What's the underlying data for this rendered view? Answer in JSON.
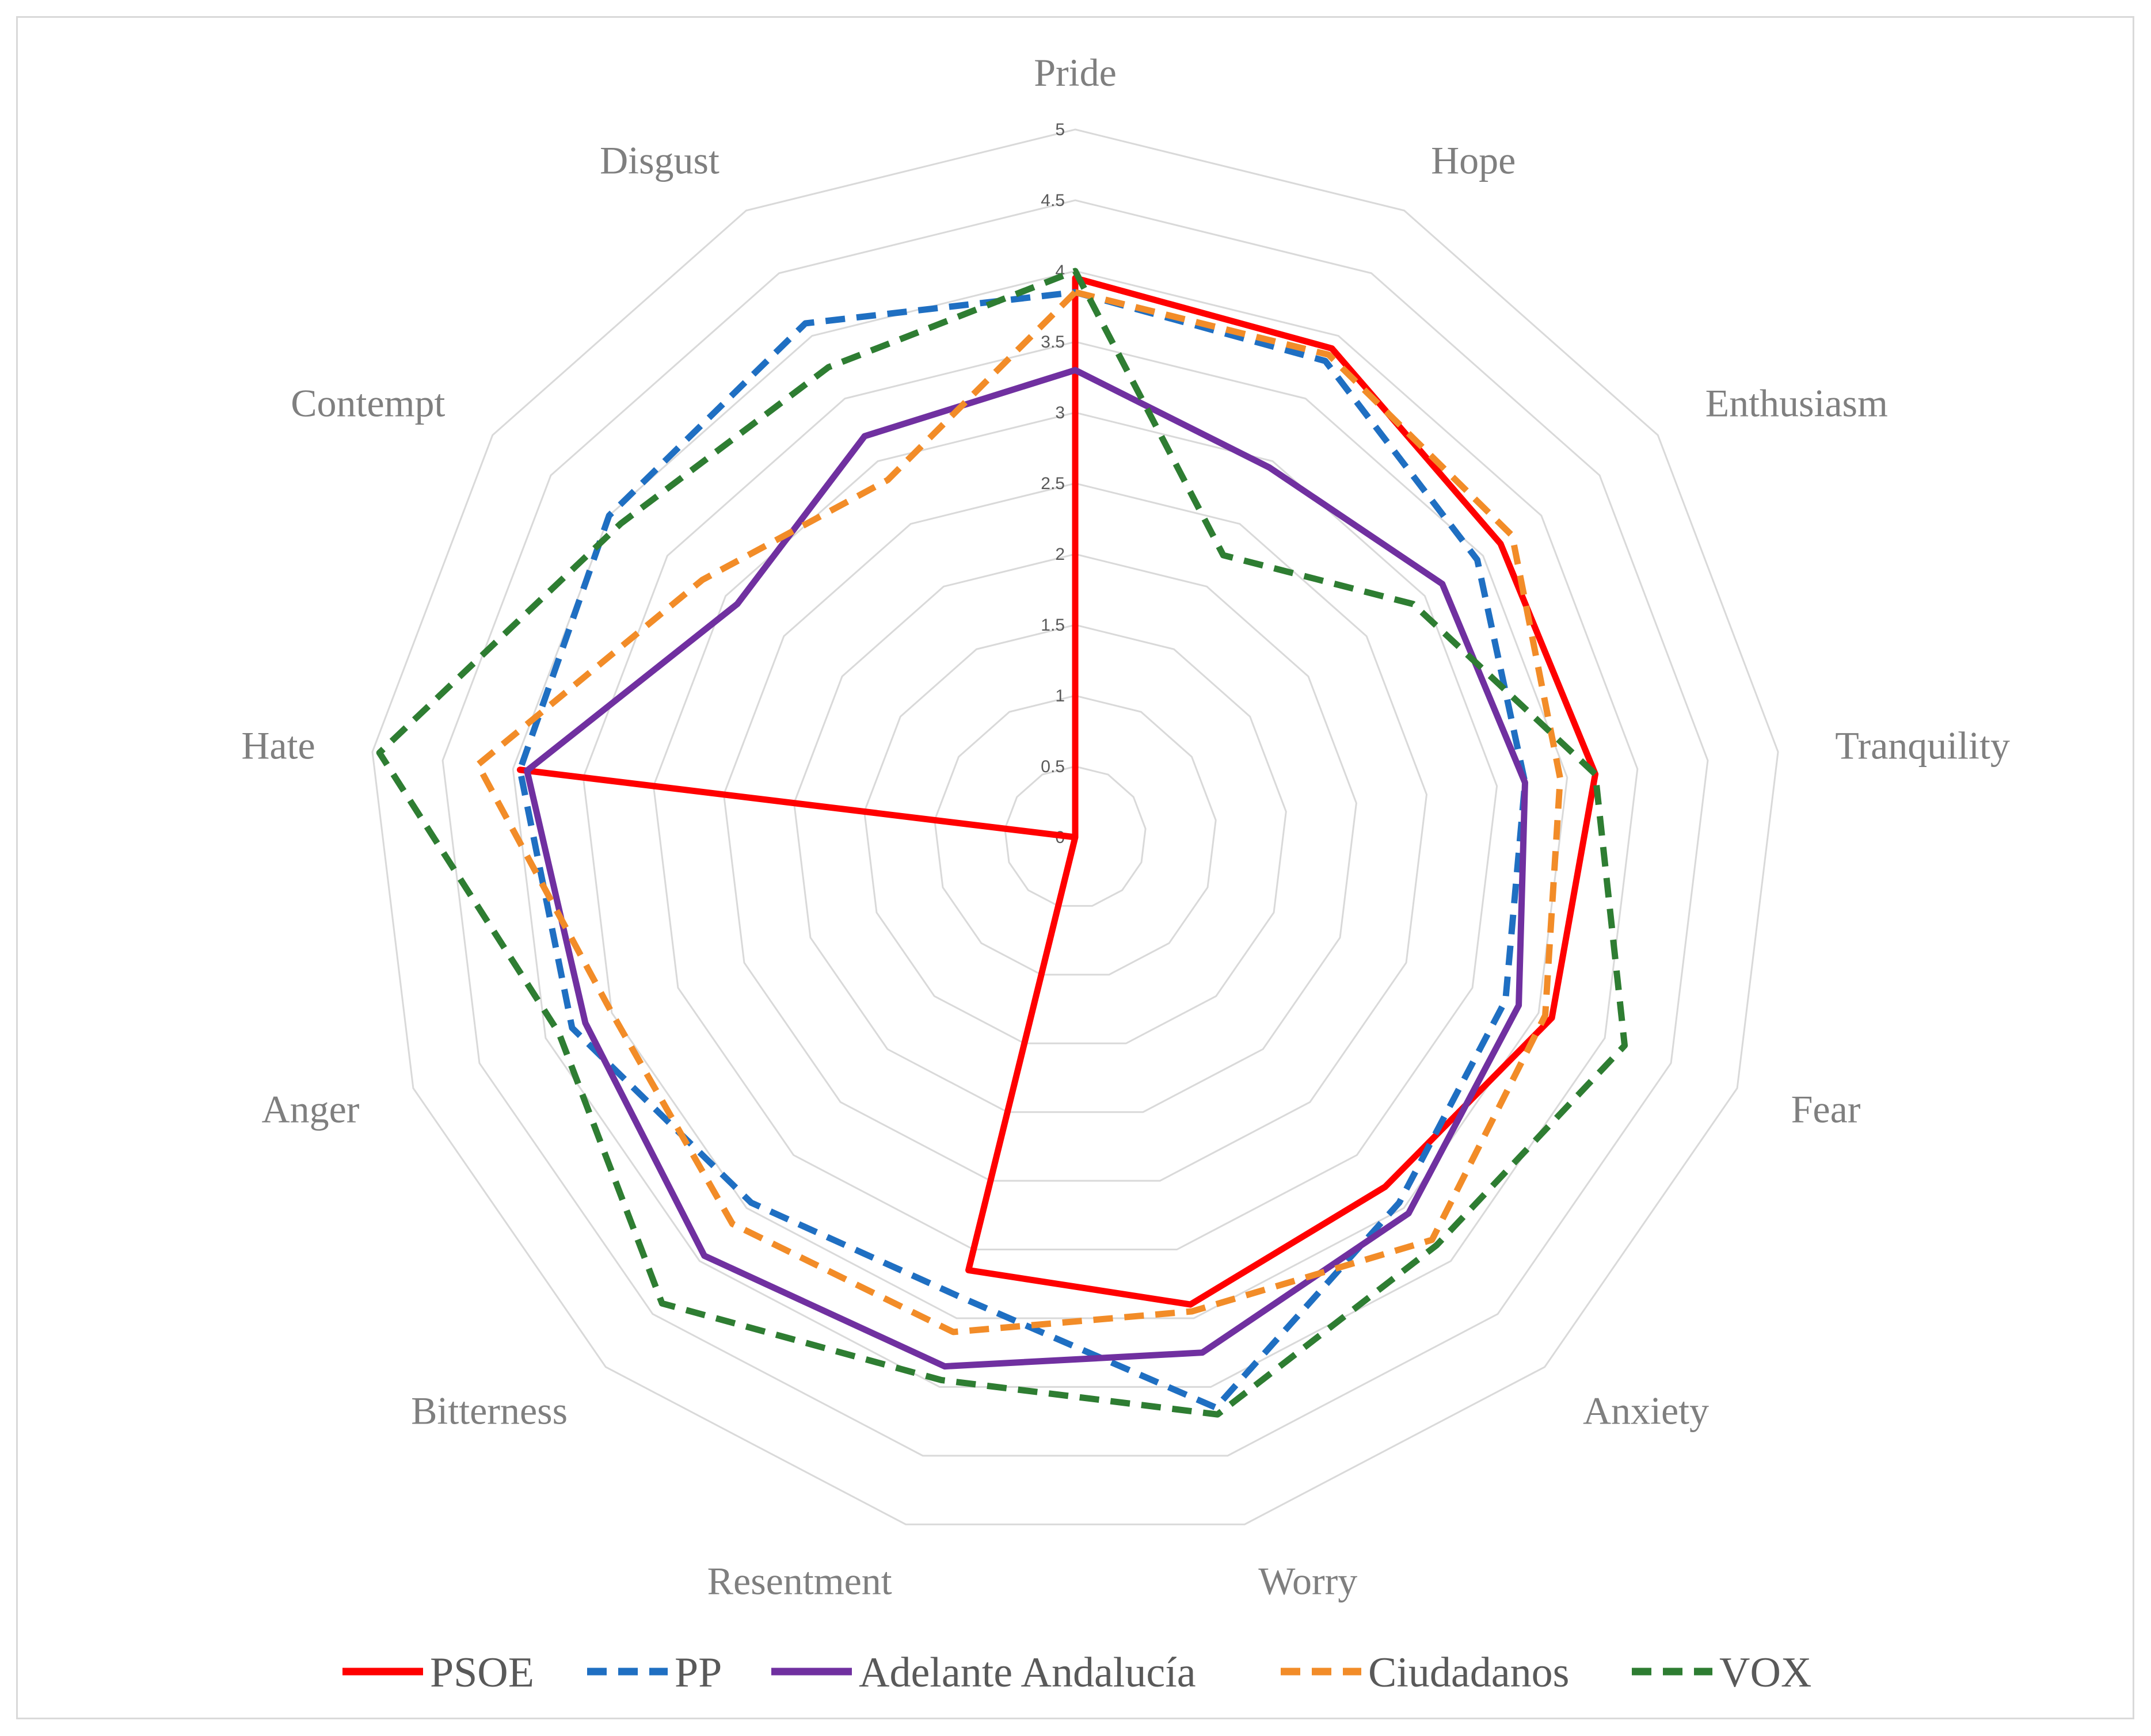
{
  "chart_data": {
    "type": "radar",
    "title": "",
    "categories": [
      "Pride",
      "Hope",
      "Enthusiasm",
      "Tranquility",
      "Fear",
      "Anxiety",
      "Worry",
      "Resentment",
      "Bitterness",
      "Anger",
      "Hate",
      "Contempt",
      "Disgust"
    ],
    "radial_ticks": [
      "0",
      "0.5",
      "1",
      "1.5",
      "2",
      "2.5",
      "3",
      "3.5",
      "4",
      "4.5",
      "5"
    ],
    "rlim": [
      0,
      5
    ],
    "grid": true,
    "legend_position": "bottom",
    "series": [
      {
        "name": "PSOE",
        "color": "#ff0000",
        "dash": "solid",
        "values": [
          3.95,
          3.9,
          3.65,
          3.7,
          3.6,
          3.3,
          3.4,
          3.15,
          0.0,
          0.0,
          3.95,
          0.0,
          0.0
        ]
      },
      {
        "name": "PP",
        "color": "#1f6fc2",
        "dash": "dashed",
        "values": [
          3.85,
          3.8,
          3.45,
          3.2,
          3.25,
          3.45,
          4.15,
          3.35,
          3.45,
          3.8,
          3.95,
          4.0,
          4.1
        ]
      },
      {
        "name": "Adelante Andalucía",
        "color": "#7030a0",
        "dash": "solid",
        "values": [
          3.3,
          2.95,
          3.15,
          3.2,
          3.35,
          3.55,
          3.75,
          3.85,
          3.95,
          3.7,
          3.9,
          2.9,
          3.2
        ]
      },
      {
        "name": "Ciudadanos",
        "color": "#f28c28",
        "dash": "dashed",
        "values": [
          3.85,
          3.85,
          3.75,
          3.45,
          3.55,
          3.8,
          3.45,
          3.6,
          3.65,
          3.5,
          4.25,
          3.2,
          2.85
        ]
      },
      {
        "name": "VOX",
        "color": "#2e7d32",
        "dash": "dashed",
        "values": [
          4.0,
          2.25,
          2.9,
          3.7,
          4.15,
          3.85,
          4.2,
          3.95,
          4.4,
          3.9,
          4.95,
          3.9,
          3.75
        ]
      }
    ]
  }
}
